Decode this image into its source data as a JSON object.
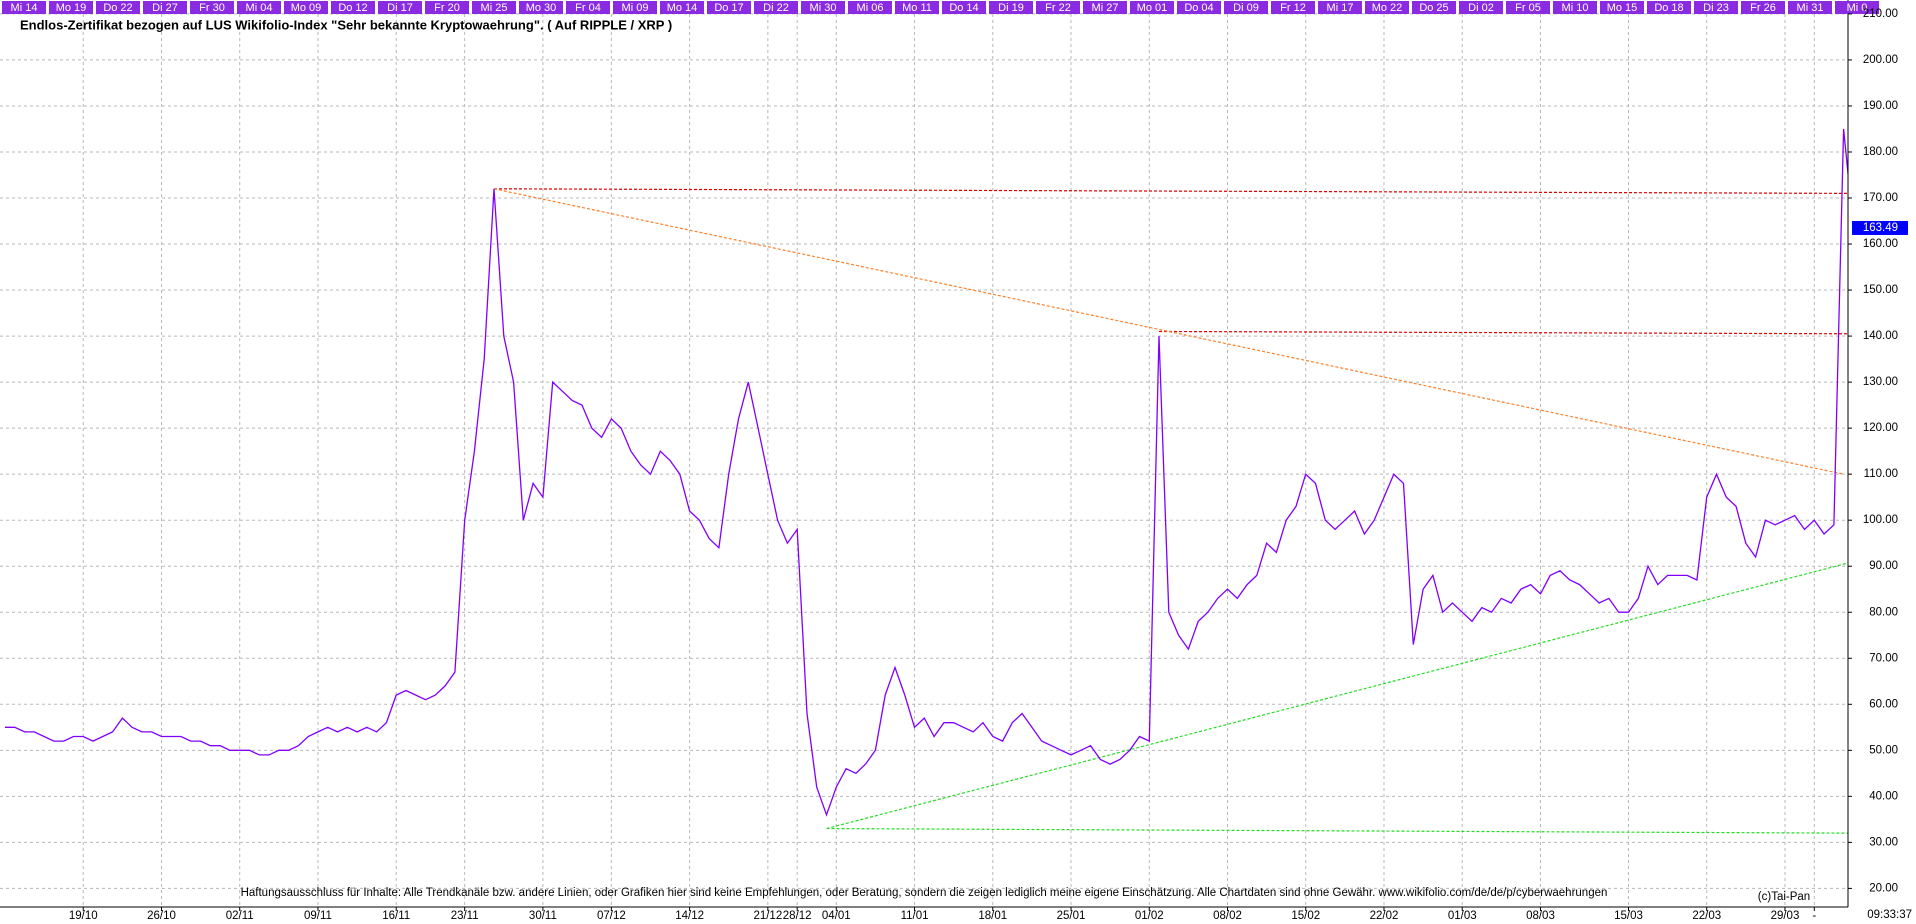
{
  "chart_data": {
    "type": "line",
    "title": "Endlos-Zertifikat bezogen auf LUS Wikifolio-Index \"Sehr bekannte Kryptowaehrung\". ( Auf RIPPLE / XRP )",
    "footer": "Haftungsausschluss für Inhalte: Alle Trendkanäle bzw. andere Linien, oder Grafiken hier sind keine Empfehlungen, oder Beratung, sondern die zeigen lediglich meine eigene Einschätzung. Alle Chartdaten sind ohne Gewähr.  www.wikifolio.com/de/de/p/cyberwaehrungen",
    "credit": "(c)Tai-Pan",
    "time": "09:33:37",
    "day_labels": [
      "Mi 14",
      "Mo 19",
      "Do 22",
      "Di 27",
      "Fr 30",
      "Mi 04",
      "Mo 09",
      "Do 12",
      "Di 17",
      "Fr 20",
      "Mi 25",
      "Mo 30",
      "Fr 04",
      "Mi 09",
      "Mo 14",
      "Do 17",
      "Di 22",
      "Mi 30",
      "Mi 06",
      "Mo 11",
      "Do 14",
      "Di 19",
      "Fr 22",
      "Mi 27",
      "Mo 01",
      "Do 04",
      "Di 09",
      "Fr 12",
      "Mi 17",
      "Mo 22",
      "Do 25",
      "Di 02",
      "Fr 05",
      "Mi 10",
      "Mo 15",
      "Do 18",
      "Di 23",
      "Fr 26",
      "Mi 31",
      "Mi 0"
    ],
    "categories": [
      null,
      null,
      null,
      null,
      null,
      null,
      null,
      null,
      "19/10",
      null,
      null,
      null,
      null,
      null,
      null,
      null,
      "26/10",
      null,
      null,
      null,
      null,
      null,
      null,
      null,
      "02/11",
      null,
      null,
      null,
      null,
      null,
      null,
      null,
      "09/11",
      null,
      null,
      null,
      null,
      null,
      null,
      null,
      "16/11",
      null,
      null,
      null,
      null,
      null,
      null,
      "23/11",
      null,
      null,
      null,
      null,
      null,
      null,
      null,
      "30/11",
      null,
      null,
      null,
      null,
      null,
      null,
      "07/12",
      null,
      null,
      null,
      null,
      null,
      null,
      null,
      "14/12",
      null,
      null,
      null,
      null,
      null,
      null,
      null,
      "21/12",
      null,
      null,
      "28/12",
      null,
      null,
      null,
      "04/01",
      null,
      null,
      null,
      null,
      null,
      null,
      null,
      "11/01",
      null,
      null,
      null,
      null,
      null,
      null,
      null,
      "18/01",
      null,
      null,
      null,
      null,
      null,
      null,
      null,
      "25/01",
      null,
      null,
      null,
      null,
      null,
      null,
      null,
      "01/02",
      null,
      null,
      null,
      null,
      null,
      null,
      null,
      "08/02",
      null,
      null,
      null,
      null,
      null,
      null,
      null,
      "15/02",
      null,
      null,
      null,
      null,
      null,
      null,
      null,
      "22/02",
      null,
      null,
      null,
      null,
      null,
      null,
      null,
      "01/03",
      null,
      null,
      null,
      null,
      null,
      null,
      null,
      "08/03",
      null,
      null,
      null,
      null,
      null,
      null,
      null,
      null,
      "15/03",
      null,
      null,
      null,
      null,
      null,
      null,
      null,
      "22/03",
      null,
      null,
      null,
      null,
      null,
      null,
      null,
      "29/03",
      null,
      null,
      "-",
      null,
      null,
      null,
      null
    ],
    "series": [
      {
        "color": "#8000ff",
        "values": [
          55,
          55,
          54,
          54,
          53,
          52,
          52,
          53,
          53,
          52,
          53,
          54,
          57,
          55,
          54,
          54,
          53,
          53,
          53,
          52,
          52,
          51,
          51,
          50,
          50,
          50,
          49,
          49,
          50,
          50,
          51,
          53,
          54,
          55,
          54,
          55,
          54,
          55,
          54,
          56,
          62,
          63,
          62,
          61,
          62,
          64,
          67,
          100,
          115,
          135,
          172,
          140,
          130,
          100,
          108,
          105,
          130,
          128,
          126,
          125,
          120,
          118,
          122,
          120,
          115,
          112,
          110,
          115,
          113,
          110,
          102,
          100,
          96,
          94,
          110,
          122,
          130,
          120,
          110,
          100,
          95,
          98,
          58,
          42,
          36,
          42,
          46,
          45,
          47,
          50,
          62,
          68,
          62,
          55,
          57,
          53,
          56,
          56,
          55,
          54,
          56,
          53,
          52,
          56,
          58,
          55,
          52,
          51,
          50,
          49,
          50,
          51,
          48,
          47,
          48,
          50,
          53,
          52,
          140,
          80,
          75,
          72,
          78,
          80,
          83,
          85,
          83,
          86,
          88,
          95,
          93,
          100,
          103,
          110,
          108,
          100,
          98,
          100,
          102,
          97,
          100,
          105,
          110,
          108,
          73,
          85,
          88,
          80,
          82,
          80,
          78,
          81,
          80,
          83,
          82,
          85,
          86,
          84,
          88,
          89,
          87,
          86,
          84,
          82,
          83,
          80,
          80,
          83,
          90,
          86,
          88,
          88,
          88,
          87,
          105,
          110,
          105,
          103,
          95,
          92,
          100,
          99,
          100,
          101,
          98,
          100,
          97,
          99,
          185,
          163.49
        ]
      }
    ],
    "trendlines": [
      {
        "color": "#e00000",
        "start": [
          50,
          172
        ],
        "end": [
          189,
          171
        ]
      },
      {
        "color": "#e00000",
        "start": [
          118,
          141
        ],
        "end": [
          189,
          140.5
        ]
      },
      {
        "color": "#ff7f27",
        "start": [
          50,
          172
        ],
        "end": [
          188,
          110
        ]
      },
      {
        "color": "#22dd22",
        "start": [
          84,
          33
        ],
        "end": [
          189,
          91
        ]
      },
      {
        "color": "#22dd22",
        "start": [
          84,
          33
        ],
        "end": [
          189,
          32
        ]
      }
    ],
    "ylim": [
      19,
      211.5
    ],
    "yticks": [
      {
        "value": 20,
        "label": "20.00"
      },
      {
        "value": 30,
        "label": "30.00"
      },
      {
        "value": 40,
        "label": "40.00"
      },
      {
        "value": 50,
        "label": "50.00"
      },
      {
        "value": 60,
        "label": "60.00"
      },
      {
        "value": 70,
        "label": "70.00"
      },
      {
        "value": 80,
        "label": "80.00"
      },
      {
        "value": 90,
        "label": "90.00"
      },
      {
        "value": 100,
        "label": "100.00"
      },
      {
        "value": 110,
        "label": "110.00"
      },
      {
        "value": 120,
        "label": "120.00"
      },
      {
        "value": 130,
        "label": "130.00"
      },
      {
        "value": 140,
        "label": "140.00"
      },
      {
        "value": 150,
        "label": "150.00"
      },
      {
        "value": 160,
        "label": "160.00"
      },
      {
        "value": 170,
        "label": "170.00"
      },
      {
        "value": 180,
        "label": "180.00"
      },
      {
        "value": 190,
        "label": "190.00"
      },
      {
        "value": 200,
        "label": "200.00"
      },
      {
        "value": 210,
        "label": "210.00"
      }
    ],
    "grid": true
  }
}
